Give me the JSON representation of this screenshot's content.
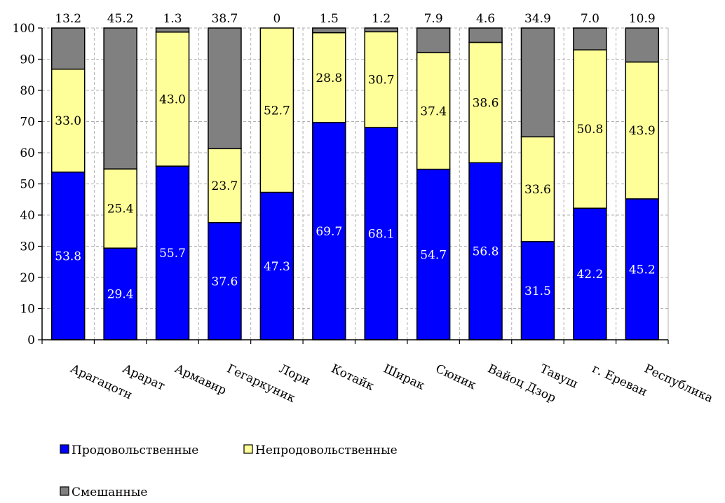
{
  "chart_data": {
    "type": "bar",
    "stacked": true,
    "categories": [
      "Арагацотн",
      "Арарат",
      "Армавир",
      "Гегаркуник",
      "Лори",
      "Котайк",
      "Ширак",
      "Сюник",
      "Вайоц Дзор",
      "Тавуш",
      "г. Ереван",
      "Республика"
    ],
    "series": [
      {
        "name": "Продовольственные",
        "color": "#0000ff",
        "values": [
          53.8,
          29.4,
          55.7,
          37.6,
          47.3,
          69.7,
          68.1,
          54.7,
          56.8,
          31.5,
          42.2,
          45.2
        ],
        "labels": [
          "53.8",
          "29.4",
          "55.7",
          "37.6",
          "47.3",
          "69.7",
          "68.1",
          "54.7",
          "56.8",
          "31.5",
          "42.2",
          "45.2"
        ]
      },
      {
        "name": "Непродовольственные",
        "color": "#ffff99",
        "values": [
          33.0,
          25.4,
          43.0,
          23.7,
          52.7,
          28.8,
          30.7,
          37.4,
          38.6,
          33.6,
          50.8,
          43.9
        ],
        "labels": [
          "33.0",
          "25.4",
          "43.0",
          "23.7",
          "52.7",
          "28.8",
          "30.7",
          "37.4",
          "38.6",
          "33.6",
          "50.8",
          "43.9"
        ]
      },
      {
        "name": "Смешанные",
        "color": "#808080",
        "values": [
          13.2,
          45.2,
          1.3,
          38.7,
          0,
          1.5,
          1.2,
          7.9,
          4.6,
          34.9,
          7.0,
          10.9
        ],
        "labels": [
          "13.2",
          "45.2",
          "1.3",
          "38.7",
          "0",
          "1.5",
          "1.2",
          "7.9",
          "4.6",
          "34.9",
          "7.0",
          "10.9"
        ]
      }
    ],
    "yticks": [
      "0",
      "10",
      "20",
      "30",
      "40",
      "50",
      "60",
      "70",
      "80",
      "90",
      "100"
    ],
    "ylim": [
      0,
      100
    ],
    "grid": true,
    "legend": "bottom"
  }
}
